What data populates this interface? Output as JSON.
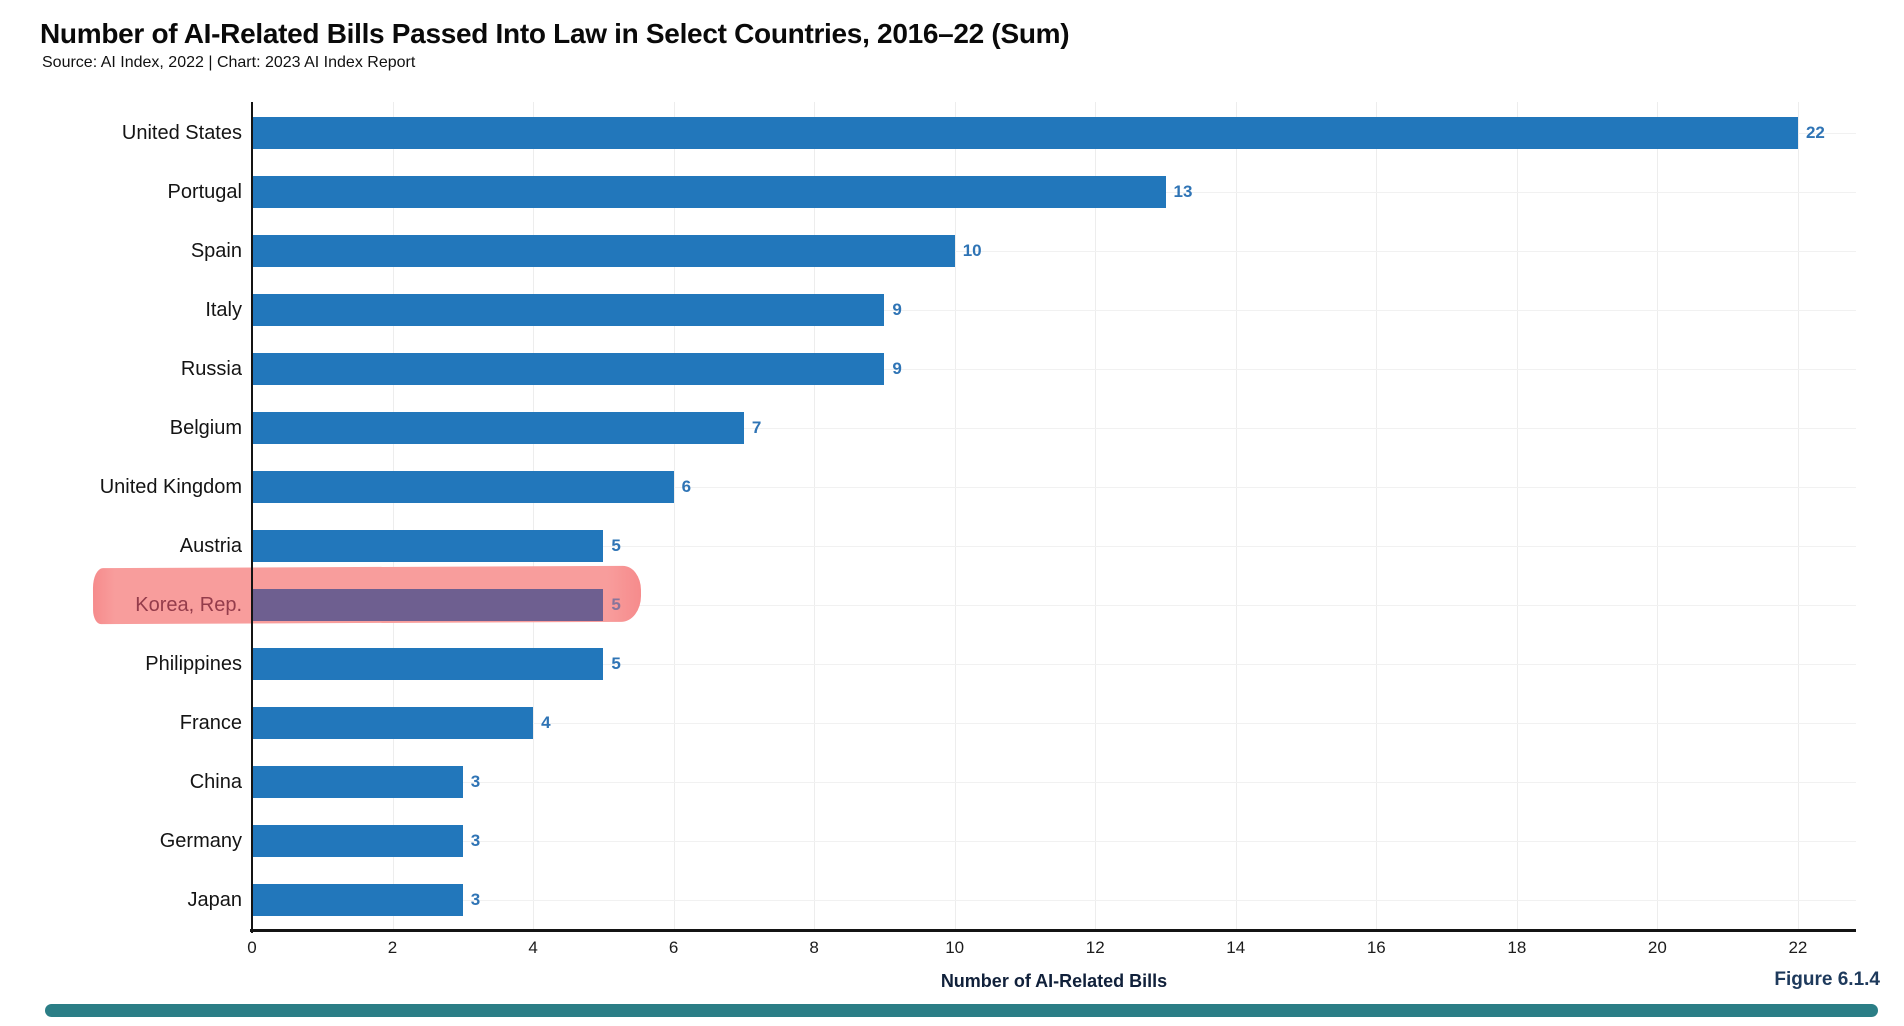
{
  "header": {
    "title": "Number of AI-Related Bills Passed Into Law in Select Countries, 2016–22 (Sum)",
    "source_line": "Source: AI Index, 2022 | Chart: 2023 AI Index Report"
  },
  "chart_data": {
    "type": "bar",
    "orientation": "horizontal",
    "title": "Number of AI-Related Bills Passed Into Law in Select Countries, 2016–22 (Sum)",
    "xlabel": "Number of AI-Related Bills",
    "ylabel": "",
    "categories": [
      "United States",
      "Portugal",
      "Spain",
      "Italy",
      "Russia",
      "Belgium",
      "United Kingdom",
      "Austria",
      "Korea, Rep.",
      "Philippines",
      "France",
      "China",
      "Germany",
      "Japan"
    ],
    "values": [
      22,
      13,
      10,
      9,
      9,
      7,
      6,
      5,
      5,
      5,
      4,
      3,
      3,
      3
    ],
    "xlim": [
      0,
      22
    ],
    "x_ticks": [
      0,
      2,
      4,
      6,
      8,
      10,
      12,
      14,
      16,
      18,
      20,
      22
    ],
    "grid": "vertical and per-row horizontal guides",
    "value_labels_shown": true,
    "highlight": {
      "category": "Korea, Rep.",
      "style": "hand-drawn pink highlighter band over row",
      "band_color": "#F89D9C",
      "band_edge_color": "#F68B8C",
      "bar_color": "#6E5F90",
      "label_color": "#943C4B",
      "value_color": "#87759B"
    },
    "colors": {
      "bar": "#2277BB",
      "value_label": "#2F74B5",
      "category_label": "#141414",
      "axis": "#141414",
      "vgrid": "#ededed",
      "hgrid": "#f1f1f1",
      "background": "#ffffff"
    }
  },
  "footer": {
    "figure_label": "Figure 6.1.4",
    "figure_label_color": "#1E3A5C",
    "rule_color": "#2B7E86"
  }
}
